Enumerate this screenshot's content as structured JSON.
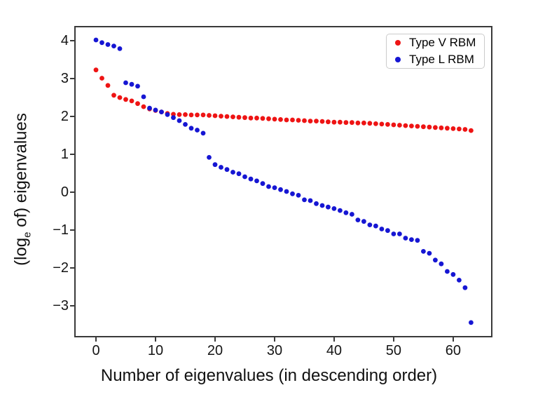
{
  "figure": {
    "bg_color": "#ffffff"
  },
  "chart_data": {
    "type": "scatter",
    "title": "",
    "xlabel": "Number of eigenvalues (in descending order)",
    "ylabel": "(log_e of) eigenvalues",
    "ylabel_parts": {
      "pre": "(log",
      "sub": "e",
      "post": " of) eigenvalues"
    },
    "xlim": [
      -3.65,
      66.6
    ],
    "ylim": [
      -3.83,
      4.39
    ],
    "x_ticks": [
      0,
      10,
      20,
      30,
      40,
      50,
      60
    ],
    "y_ticks": [
      4,
      3,
      2,
      1,
      0,
      -1,
      -2,
      -3
    ],
    "grid": false,
    "legend_position": "upper-right",
    "axis_color": "#3a3a3a",
    "tick_label_color": "#151515",
    "marker_style": "dot",
    "series": [
      {
        "name": "Type V RBM",
        "color": "#ee1414",
        "x_start": 0,
        "values": [
          3.23,
          3.01,
          2.82,
          2.56,
          2.5,
          2.45,
          2.41,
          2.34,
          2.26,
          2.2,
          2.16,
          2.12,
          2.08,
          2.06,
          2.05,
          2.05,
          2.04,
          2.04,
          2.04,
          2.03,
          2.02,
          2.01,
          2.0,
          1.99,
          1.98,
          1.97,
          1.96,
          1.96,
          1.95,
          1.94,
          1.93,
          1.92,
          1.91,
          1.91,
          1.9,
          1.89,
          1.88,
          1.88,
          1.87,
          1.86,
          1.85,
          1.85,
          1.84,
          1.84,
          1.83,
          1.83,
          1.82,
          1.81,
          1.8,
          1.79,
          1.78,
          1.77,
          1.76,
          1.75,
          1.74,
          1.73,
          1.72,
          1.71,
          1.7,
          1.69,
          1.68,
          1.67,
          1.66,
          1.63
        ]
      },
      {
        "name": "Type L RBM",
        "color": "#1616d3",
        "x_start": 0,
        "values": [
          4.02,
          3.95,
          3.9,
          3.86,
          3.79,
          2.89,
          2.85,
          2.8,
          2.52,
          2.22,
          2.17,
          2.12,
          2.05,
          1.97,
          1.89,
          1.79,
          1.69,
          1.64,
          1.56,
          0.92,
          0.73,
          0.66,
          0.6,
          0.53,
          0.49,
          0.41,
          0.35,
          0.3,
          0.23,
          0.15,
          0.12,
          0.07,
          0.02,
          -0.04,
          -0.08,
          -0.2,
          -0.22,
          -0.3,
          -0.35,
          -0.39,
          -0.43,
          -0.48,
          -0.54,
          -0.58,
          -0.73,
          -0.77,
          -0.86,
          -0.89,
          -0.97,
          -1.01,
          -1.1,
          -1.1,
          -1.21,
          -1.25,
          -1.27,
          -1.56,
          -1.61,
          -1.79,
          -1.89,
          -2.09,
          -2.17,
          -2.32,
          -2.52,
          -3.44
        ]
      }
    ]
  },
  "legend": {
    "items": [
      {
        "label": "Type V RBM",
        "marker_color": "#ee1414"
      },
      {
        "label": "Type L RBM",
        "marker_color": "#1616d3"
      }
    ]
  }
}
